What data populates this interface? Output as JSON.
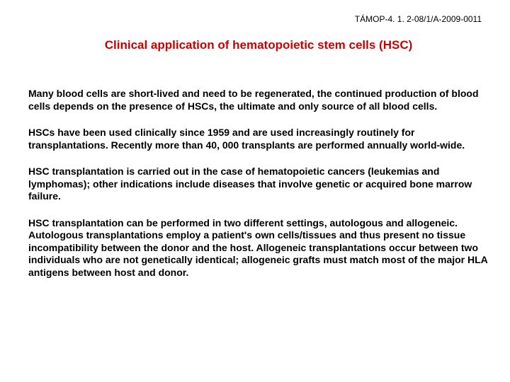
{
  "header": {
    "code": "TÁMOP-4. 1. 2-08/1/A-2009-0011"
  },
  "title": "Clinical application  of hematopoietic stem cells (HSC)",
  "paragraphs": [
    "Many blood cells are short-lived and need to be regenerated, the continued production of blood cells depends on the presence of HSCs, the ultimate and only source of all blood cells.",
    "HSCs have been used clinically since 1959 and are used increasingly routinely for transplantations. Recently more than 40, 000 transplants are performed annually world-wide.",
    "HSC transplantation is carried out in the case of hematopoietic cancers (leukemias and lymphomas); other indications include diseases that involve genetic or acquired bone marrow failure.",
    "HSC transplantation can be performed in two different settings, autologous and allogeneic. Autologous transplantations employ a patient's own cells/tissues and thus present no tissue incompatibility between the donor and the host. Allogeneic transplantations occur between two individuals who are not genetically identical; allogeneic grafts must match most of the major HLA antigens between host and donor."
  ],
  "colors": {
    "title_color": "#cc0000",
    "text_color": "#000000",
    "background_color": "#ffffff"
  },
  "typography": {
    "title_fontsize": 17,
    "title_fontweight": "bold",
    "body_fontsize": 14,
    "body_fontweight": "bold",
    "header_fontsize": 12,
    "font_family": "Arial"
  }
}
